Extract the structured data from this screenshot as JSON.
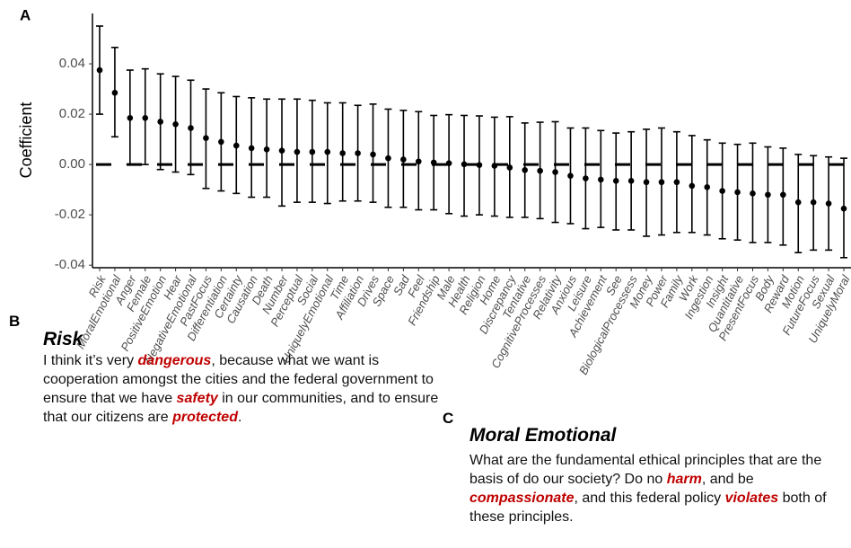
{
  "chart_data": {
    "type": "errorbar",
    "panel_label": "A",
    "ylabel": "Coefficient",
    "categories": [
      "Risk",
      "MoralEmotional",
      "Anger",
      "Female",
      "PositiveEmotion",
      "Hear",
      "NegativeEmotional",
      "PastFocus",
      "Differentiation",
      "Certainty",
      "Causation",
      "Death",
      "Number",
      "Perceptual",
      "Social",
      "UniquelyEmotional",
      "Time",
      "Affiliation",
      "Drives",
      "Space",
      "Sad",
      "Feel",
      "Friendship",
      "Male",
      "Health",
      "Religion",
      "Home",
      "Discrepancy",
      "Tentative",
      "CognitiveProcesses",
      "Relativity",
      "Anxious",
      "Leisure",
      "Achievement",
      "See",
      "BiologicalProcessess",
      "Money",
      "Power",
      "Family",
      "Work",
      "Ingestion",
      "Insight",
      "Quantitative",
      "PresentFocus",
      "Body",
      "Reward",
      "Motion",
      "FutureFocus",
      "Sexual",
      "UniquelyMoral"
    ],
    "series": [
      {
        "color": "#000000",
        "values": [
          0.0375,
          0.0285,
          0.0185,
          0.0185,
          0.017,
          0.016,
          0.0145,
          0.0105,
          0.009,
          0.0075,
          0.0065,
          0.006,
          0.0055,
          0.005,
          0.005,
          0.005,
          0.0045,
          0.0045,
          0.004,
          0.0025,
          0.002,
          0.0012,
          0.0008,
          0.0005,
          0.0001,
          -0.0002,
          -0.0005,
          -0.0012,
          -0.0022,
          -0.0025,
          -0.003,
          -0.0045,
          -0.0055,
          -0.006,
          -0.0065,
          -0.0065,
          -0.007,
          -0.007,
          -0.007,
          -0.0085,
          -0.009,
          -0.0105,
          -0.011,
          -0.0115,
          -0.012,
          -0.012,
          -0.015,
          -0.015,
          -0.0155,
          -0.0175
        ],
        "lower": [
          0.02,
          0.011,
          0,
          0,
          -0.002,
          -0.003,
          -0.004,
          -0.0095,
          -0.0105,
          -0.0115,
          -0.013,
          -0.013,
          -0.0165,
          -0.015,
          -0.015,
          -0.0155,
          -0.0145,
          -0.0145,
          -0.015,
          -0.017,
          -0.017,
          -0.018,
          -0.018,
          -0.0195,
          -0.0205,
          -0.02,
          -0.0205,
          -0.021,
          -0.021,
          -0.0215,
          -0.023,
          -0.0235,
          -0.0255,
          -0.025,
          -0.026,
          -0.026,
          -0.0285,
          -0.028,
          -0.027,
          -0.027,
          -0.028,
          -0.0295,
          -0.03,
          -0.031,
          -0.031,
          -0.032,
          -0.035,
          -0.034,
          -0.034,
          -0.037
        ],
        "upper": [
          0.055,
          0.0465,
          0.0375,
          0.038,
          0.036,
          0.035,
          0.0335,
          0.03,
          0.0285,
          0.027,
          0.0265,
          0.026,
          0.026,
          0.026,
          0.0255,
          0.0245,
          0.0245,
          0.0235,
          0.024,
          0.022,
          0.0215,
          0.021,
          0.0195,
          0.0198,
          0.0195,
          0.0193,
          0.0188,
          0.019,
          0.0165,
          0.0168,
          0.017,
          0.0145,
          0.0145,
          0.0135,
          0.0125,
          0.013,
          0.014,
          0.0145,
          0.013,
          0.0115,
          0.0098,
          0.0085,
          0.008,
          0.0085,
          0.007,
          0.0065,
          0.004,
          0.0035,
          0.003,
          0.0025
        ]
      }
    ],
    "ylim": [
      -0.041,
      0.06
    ],
    "yticks": [
      -0.04,
      -0.02,
      {
        "value": 0,
        "label": "0.00"
      },
      0.02,
      0.04
    ],
    "hline": 0,
    "annotations": [
      {
        "text": "**",
        "category": "Risk"
      }
    ]
  },
  "panels": [
    {
      "label": "B",
      "title": "Risk",
      "runs": [
        {
          "text": "I think it’s very "
        },
        {
          "text": "dangerous",
          "em": true
        },
        {
          "text": ", because what we want is cooperation amongst the cities and the federal government to ensure that we have "
        },
        {
          "text": "safety",
          "em": true
        },
        {
          "text": " in our communities, and to ensure that our citizens are "
        },
        {
          "text": "protected",
          "em": true
        },
        {
          "text": "."
        }
      ]
    },
    {
      "label": "C",
      "title": "Moral Emotional",
      "runs": [
        {
          "text": "What are the fundamental ethical principles that are the basis of do our society? Do no "
        },
        {
          "text": "harm",
          "em": true
        },
        {
          "text": ", and be "
        },
        {
          "text": "compassionate",
          "em": true
        },
        {
          "text": ", and this federal policy "
        },
        {
          "text": "violates",
          "em": true
        },
        {
          "text": " both of these principles."
        }
      ]
    }
  ]
}
